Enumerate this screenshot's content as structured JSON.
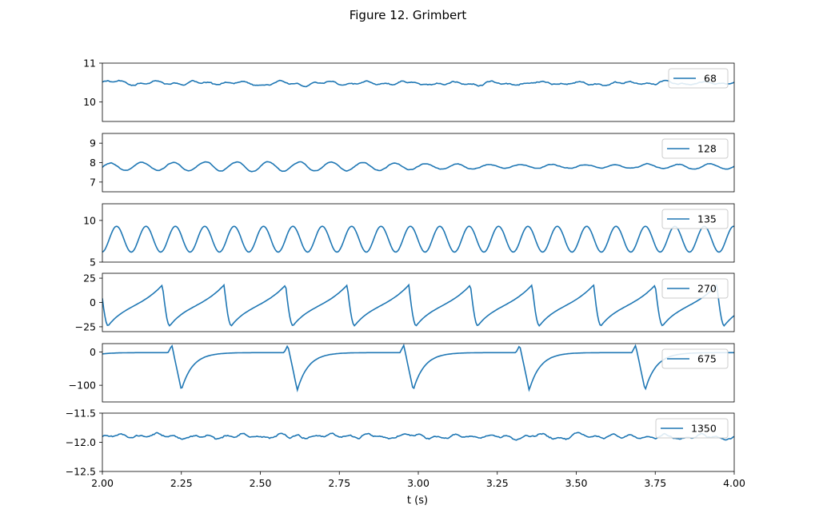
{
  "figure": {
    "title": "Figure 12. Grimbert",
    "xlabel": "t (s)",
    "line_color": "#1f77b4"
  },
  "chart_data": {
    "type": "line",
    "title": "Figure 12. Grimbert",
    "xlabel": "t (s)",
    "xlim": [
      2.0,
      4.0
    ],
    "x_ticks": [
      "2.00",
      "2.25",
      "2.50",
      "2.75",
      "3.00",
      "3.25",
      "3.50",
      "3.75",
      "4.00"
    ],
    "legend_position": "top-right",
    "subplots": [
      {
        "legend": "68",
        "ylim": [
          9.5,
          11.0
        ],
        "y_ticks": [
          "10",
          "11"
        ],
        "y_tick_values": [
          10,
          11
        ],
        "waveform": "noise",
        "mean": 10.48,
        "amplitude": 0.06
      },
      {
        "legend": "128",
        "ylim": [
          6.5,
          9.5
        ],
        "y_ticks": [
          "7",
          "8",
          "9"
        ],
        "y_tick_values": [
          7,
          8,
          9
        ],
        "waveform": "wobble",
        "mean": 7.8,
        "amplitude": 0.2
      },
      {
        "legend": "135",
        "ylim": [
          5.0,
          12.0
        ],
        "y_ticks": [
          "5",
          "10"
        ],
        "y_tick_values": [
          5,
          10
        ],
        "waveform": "sine",
        "min": 6.2,
        "max": 9.3,
        "period": 0.093
      },
      {
        "legend": "270",
        "ylim": [
          -30,
          30
        ],
        "y_ticks": [
          "−25",
          "0",
          "25"
        ],
        "y_tick_values": [
          -25,
          0,
          25
        ],
        "waveform": "spike",
        "min": -24,
        "max": 18,
        "period": 0.195,
        "first_peak": 2.19
      },
      {
        "legend": "675",
        "ylim": [
          -150,
          25
        ],
        "y_ticks": [
          "−100",
          "0"
        ],
        "y_tick_values": [
          -100,
          0
        ],
        "waveform": "action_potential",
        "min": -115,
        "max": 20,
        "baseline": -2,
        "period": 0.367,
        "first_peak": 2.22
      },
      {
        "legend": "1350",
        "ylim": [
          -12.5,
          -11.5
        ],
        "y_ticks": [
          "−12.5",
          "−12.0",
          "−11.5"
        ],
        "y_tick_values": [
          -12.5,
          -12.0,
          -11.5
        ],
        "waveform": "noise",
        "mean": -11.9,
        "amplitude": 0.05
      }
    ]
  }
}
